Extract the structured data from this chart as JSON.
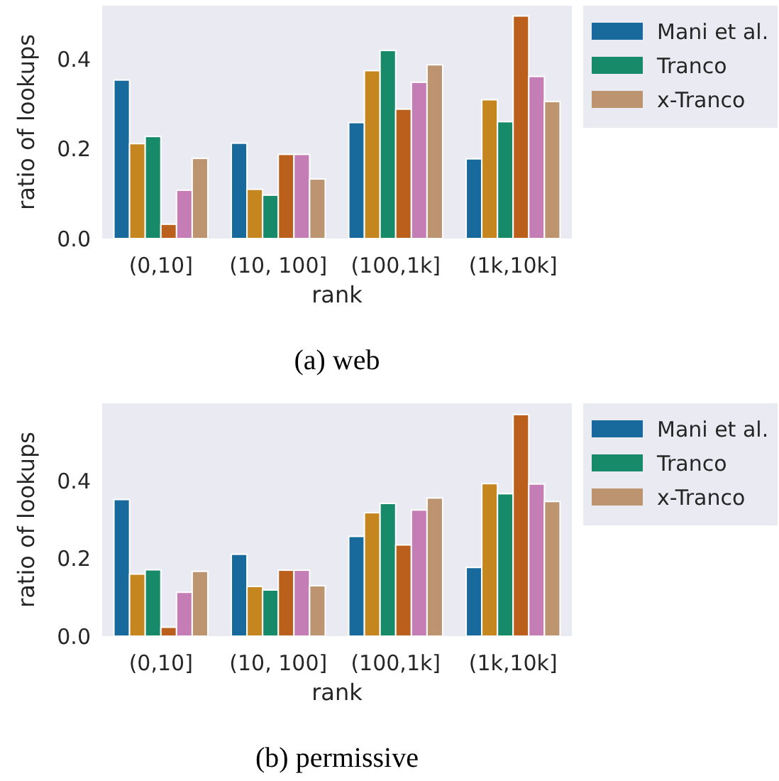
{
  "chart_data": [
    {
      "type": "bar",
      "title": "(a) web",
      "xlabel": "rank",
      "ylabel": "ratio of lookups",
      "categories": [
        "(0,10]",
        "(10, 100]",
        "(100,1k]",
        "(1k,10k]"
      ],
      "ylim": [
        0,
        0.52
      ],
      "yticks": [
        {
          "value": 0,
          "label": "0.0"
        },
        {
          "value": 0.2,
          "label": "0.2"
        },
        {
          "value": 0.4,
          "label": "0.4"
        }
      ],
      "legend": "top right",
      "series": [
        {
          "name": "Mani et al.",
          "color": "#18699c",
          "values": [
            0.354,
            0.213,
            0.259,
            0.178
          ]
        },
        {
          "color": "#c5861f",
          "values": [
            0.212,
            0.11,
            0.375,
            0.31
          ]
        },
        {
          "name": "Tranco",
          "color": "#178b69",
          "values": [
            0.228,
            0.097,
            0.42,
            0.261
          ]
        },
        {
          "color": "#bb5f1d",
          "values": [
            0.032,
            0.188,
            0.289,
            0.497
          ]
        },
        {
          "color": "#c47db5",
          "values": [
            0.108,
            0.188,
            0.349,
            0.362
          ]
        },
        {
          "name": "x-Tranco",
          "color": "#bc9470",
          "values": [
            0.179,
            0.133,
            0.388,
            0.306
          ]
        }
      ]
    },
    {
      "type": "bar",
      "title": "(b) permissive",
      "xlabel": "rank",
      "ylabel": "ratio of lookups",
      "categories": [
        "(0,10]",
        "(10, 100]",
        "(100,1k]",
        "(1k,10k]"
      ],
      "ylim": [
        0,
        0.6
      ],
      "yticks": [
        {
          "value": 0,
          "label": "0.0"
        },
        {
          "value": 0.2,
          "label": "0.2"
        },
        {
          "value": 0.4,
          "label": "0.4"
        }
      ],
      "legend": "top right",
      "series": [
        {
          "name": "Mani et al.",
          "color": "#18699c",
          "values": [
            0.352,
            0.211,
            0.257,
            0.177
          ]
        },
        {
          "color": "#c5861f",
          "values": [
            0.16,
            0.128,
            0.318,
            0.393
          ]
        },
        {
          "name": "Tranco",
          "color": "#178b69",
          "values": [
            0.171,
            0.119,
            0.342,
            0.367
          ]
        },
        {
          "color": "#bb5f1d",
          "values": [
            0.023,
            0.17,
            0.235,
            0.571
          ]
        },
        {
          "color": "#c47db5",
          "values": [
            0.113,
            0.17,
            0.325,
            0.392
          ]
        },
        {
          "name": "x-Tranco",
          "color": "#bc9470",
          "values": [
            0.167,
            0.13,
            0.356,
            0.347
          ]
        }
      ]
    }
  ]
}
